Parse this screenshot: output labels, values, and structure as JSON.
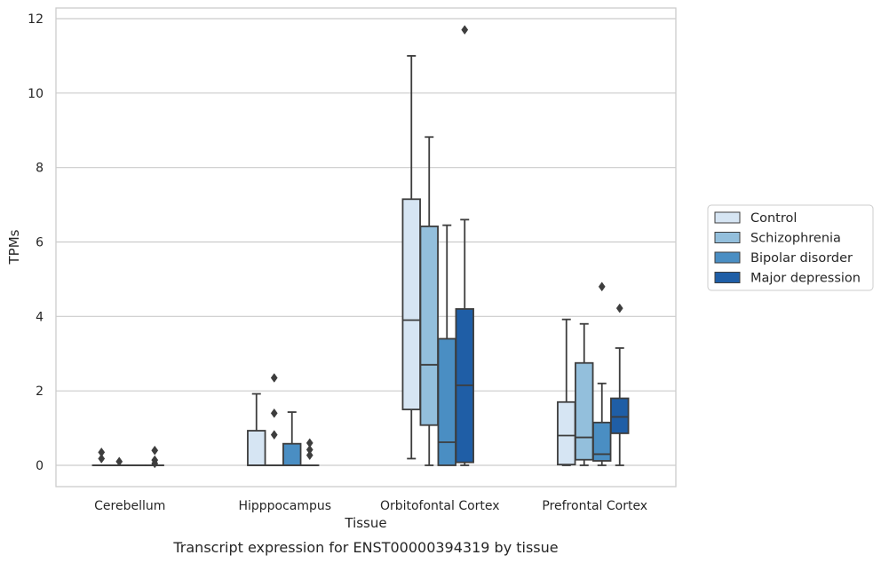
{
  "chart_data": {
    "type": "box",
    "title": "",
    "caption": "Transcript expression for ENST00000394319 by tissue",
    "xlabel": "Tissue",
    "ylabel": "TPMs",
    "ylim": [
      -0.55,
      12.3
    ],
    "yticks": [
      0,
      2,
      4,
      6,
      8,
      10,
      12
    ],
    "grid": "horizontal",
    "legend_position": "right",
    "categories": [
      "Cerebellum",
      "Hipppocampus",
      "Orbitofontal Cortex",
      "Prefrontal Cortex"
    ],
    "colors": [
      "#d6e5f3",
      "#93bfdc",
      "#4a8ec3",
      "#1f5ea6"
    ],
    "edge_color": "#3d3d3d",
    "series": [
      {
        "name": "Control",
        "boxes": [
          {
            "q1": 0,
            "median": 0,
            "q3": 0,
            "whisker_low": 0,
            "whisker_high": 0,
            "outliers": [
              0.35,
              0.18
            ]
          },
          {
            "q1": 0,
            "median": 0,
            "q3": 0.93,
            "whisker_low": 0,
            "whisker_high": 1.92,
            "outliers": []
          },
          {
            "q1": 1.5,
            "median": 3.9,
            "q3": 7.15,
            "whisker_low": 0.18,
            "whisker_high": 11.0,
            "outliers": []
          },
          {
            "q1": 0.02,
            "median": 0.8,
            "q3": 1.7,
            "whisker_low": 0.0,
            "whisker_high": 3.92,
            "outliers": []
          }
        ]
      },
      {
        "name": "Schizophrenia",
        "boxes": [
          {
            "q1": 0,
            "median": 0,
            "q3": 0,
            "whisker_low": 0,
            "whisker_high": 0,
            "outliers": [
              0.1
            ]
          },
          {
            "q1": 0,
            "median": 0,
            "q3": 0,
            "whisker_low": 0,
            "whisker_high": 0,
            "outliers": [
              2.35,
              1.4,
              0.82
            ]
          },
          {
            "q1": 1.08,
            "median": 2.7,
            "q3": 6.42,
            "whisker_low": 0.0,
            "whisker_high": 8.82,
            "outliers": []
          },
          {
            "q1": 0.15,
            "median": 0.75,
            "q3": 2.75,
            "whisker_low": 0.0,
            "whisker_high": 3.8,
            "outliers": []
          }
        ]
      },
      {
        "name": "Bipolar disorder",
        "boxes": [
          {
            "q1": 0,
            "median": 0,
            "q3": 0,
            "whisker_low": 0,
            "whisker_high": 0,
            "outliers": []
          },
          {
            "q1": 0,
            "median": 0,
            "q3": 0.58,
            "whisker_low": 0,
            "whisker_high": 1.43,
            "outliers": []
          },
          {
            "q1": 0.0,
            "median": 0.62,
            "q3": 3.4,
            "whisker_low": 0.0,
            "whisker_high": 6.45,
            "outliers": []
          },
          {
            "q1": 0.12,
            "median": 0.3,
            "q3": 1.15,
            "whisker_low": 0.0,
            "whisker_high": 2.2,
            "outliers": [
              4.8
            ]
          }
        ]
      },
      {
        "name": "Major depression",
        "boxes": [
          {
            "q1": 0,
            "median": 0,
            "q3": 0,
            "whisker_low": 0,
            "whisker_high": 0,
            "outliers": [
              0.4,
              0.14,
              0.05
            ]
          },
          {
            "q1": 0,
            "median": 0,
            "q3": 0,
            "whisker_low": 0,
            "whisker_high": 0,
            "outliers": [
              0.6,
              0.42,
              0.27
            ]
          },
          {
            "q1": 0.08,
            "median": 2.15,
            "q3": 4.2,
            "whisker_low": 0.0,
            "whisker_high": 6.6,
            "outliers": [
              11.7
            ]
          },
          {
            "q1": 0.86,
            "median": 1.3,
            "q3": 1.8,
            "whisker_low": 0.0,
            "whisker_high": 3.15,
            "outliers": [
              4.22
            ]
          }
        ]
      }
    ]
  }
}
